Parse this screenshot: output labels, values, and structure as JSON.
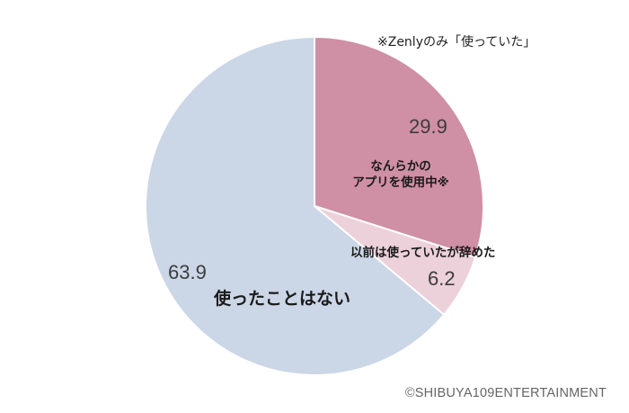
{
  "chart_data": {
    "type": "pie",
    "title": "",
    "start_angle_deg": 0,
    "direction": "clockwise",
    "unit": "%",
    "slices": [
      {
        "label": "なんらかのアプリを使用中※",
        "label_lines": [
          "なんらかの",
          "アプリを使用中※"
        ],
        "value": 29.9,
        "value_label": "29.9",
        "color": "#cf8fa5"
      },
      {
        "label": "以前は使っていたが辞めた",
        "value": 6.2,
        "value_label": "6.2",
        "color": "#ecd0da"
      },
      {
        "label": "使ったことはない",
        "value": 63.9,
        "value_label": "63.9",
        "color": "#cbd6e6"
      }
    ],
    "annotations": [
      "※Zenlyのみ「使っていた」"
    ],
    "legend": "none",
    "separator_color": "#ffffff"
  },
  "note": "※Zenlyのみ「使っていた」",
  "credit": "©SHIBUYA109ENTERTAINMENT"
}
